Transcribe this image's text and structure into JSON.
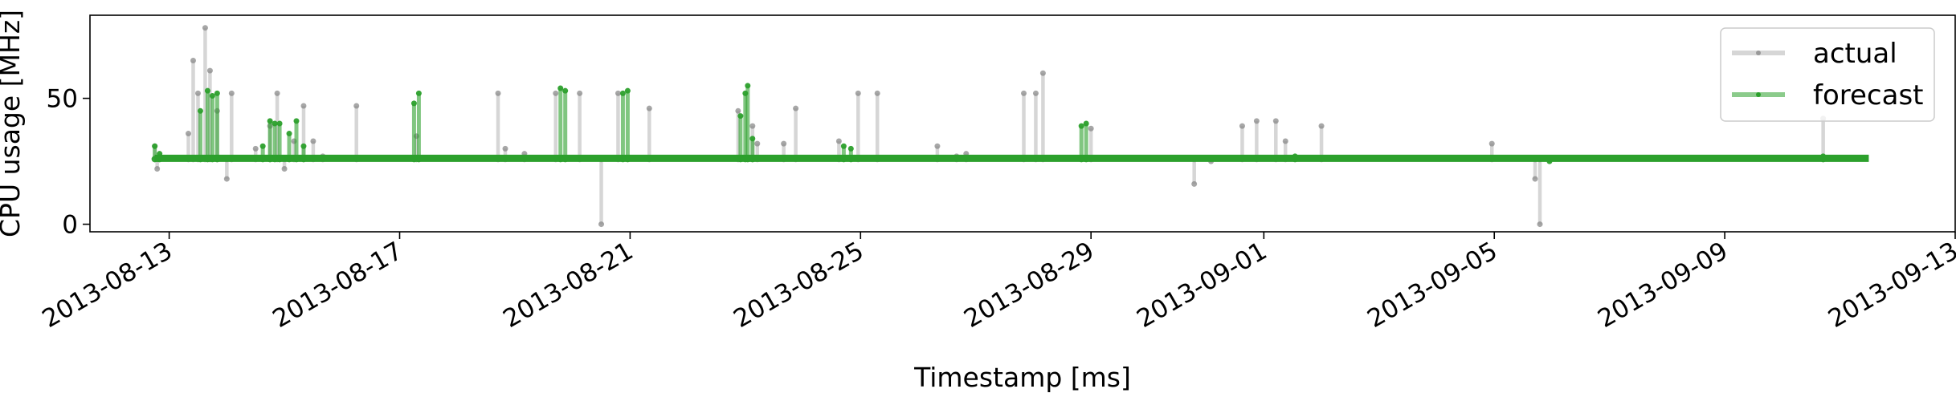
{
  "chart_data": {
    "type": "line",
    "xlabel": "Timestamp [ms]",
    "ylabel": "CPU usage [MHz]",
    "x_range": [
      "2013-08-11T15:00",
      "2013-09-13T00:00"
    ],
    "ylim": [
      -3,
      83
    ],
    "y_ticks": [
      0,
      50
    ],
    "x_ticks": [
      "2013-08-13",
      "2013-08-17",
      "2013-08-21",
      "2013-08-25",
      "2013-08-29",
      "2013-09-01",
      "2013-09-05",
      "2013-09-09",
      "2013-09-13"
    ],
    "legend": {
      "position": "top-right",
      "entries": [
        "actual",
        "forecast"
      ]
    },
    "grid": false,
    "baseline": {
      "value": 26.2,
      "start": "2013-08-12T18:00",
      "end": "2013-09-11T12:00"
    },
    "series": [
      {
        "name": "actual",
        "color": "#b5b5b5",
        "spikes": [
          [
            "2013-08-12T18:00",
            31
          ],
          [
            "2013-08-12T19:00",
            22
          ],
          [
            "2013-08-13T08:00",
            36
          ],
          [
            "2013-08-13T10:00",
            65
          ],
          [
            "2013-08-13T12:00",
            52
          ],
          [
            "2013-08-13T15:00",
            78
          ],
          [
            "2013-08-13T17:00",
            61
          ],
          [
            "2013-08-13T20:00",
            45
          ],
          [
            "2013-08-14T00:00",
            18
          ],
          [
            "2013-08-14T02:00",
            52
          ],
          [
            "2013-08-14T12:00",
            30
          ],
          [
            "2013-08-14T18:00",
            39
          ],
          [
            "2013-08-14T21:00",
            52
          ],
          [
            "2013-08-15T00:00",
            22
          ],
          [
            "2013-08-15T04:00",
            33
          ],
          [
            "2013-08-15T08:00",
            47
          ],
          [
            "2013-08-15T12:00",
            33
          ],
          [
            "2013-08-15T16:00",
            27
          ],
          [
            "2013-08-16T06:00",
            47
          ],
          [
            "2013-08-17T07:00",
            35
          ],
          [
            "2013-08-18T17:00",
            52
          ],
          [
            "2013-08-18T20:00",
            30
          ],
          [
            "2013-08-19T04:00",
            28
          ],
          [
            "2013-08-19T17:00",
            52
          ],
          [
            "2013-08-20T03:00",
            52
          ],
          [
            "2013-08-20T12:00",
            0
          ],
          [
            "2013-08-20T19:00",
            52
          ],
          [
            "2013-08-21T08:00",
            46
          ],
          [
            "2013-08-22T21:00",
            45
          ],
          [
            "2013-08-23T03:00",
            39
          ],
          [
            "2013-08-23T05:00",
            32
          ],
          [
            "2013-08-23T16:00",
            32
          ],
          [
            "2013-08-23T21:00",
            46
          ],
          [
            "2013-08-24T15:00",
            33
          ],
          [
            "2013-08-24T23:00",
            52
          ],
          [
            "2013-08-25T07:00",
            52
          ],
          [
            "2013-08-26T08:00",
            31
          ],
          [
            "2013-08-26T16:00",
            27
          ],
          [
            "2013-08-26T20:00",
            28
          ],
          [
            "2013-08-27T20:00",
            52
          ],
          [
            "2013-08-28T01:00",
            52
          ],
          [
            "2013-08-28T04:00",
            60
          ],
          [
            "2013-08-29T00:00",
            38
          ],
          [
            "2013-08-30T19:00",
            16
          ],
          [
            "2013-08-31T02:00",
            25
          ],
          [
            "2013-08-31T15:00",
            39
          ],
          [
            "2013-08-31T21:00",
            41
          ],
          [
            "2013-09-01T05:00",
            41
          ],
          [
            "2013-09-01T09:00",
            33
          ],
          [
            "2013-09-02T00:00",
            39
          ],
          [
            "2013-09-04T23:00",
            32
          ],
          [
            "2013-09-05T17:00",
            18
          ],
          [
            "2013-09-05T19:00",
            0
          ],
          [
            "2013-09-10T17:00",
            42
          ]
        ]
      },
      {
        "name": "forecast",
        "color": "#2ca02c",
        "spikes": [
          [
            "2013-08-12T18:00",
            31
          ],
          [
            "2013-08-12T20:00",
            28
          ],
          [
            "2013-08-13T13:00",
            45
          ],
          [
            "2013-08-13T16:00",
            53
          ],
          [
            "2013-08-13T18:00",
            51
          ],
          [
            "2013-08-13T20:00",
            52
          ],
          [
            "2013-08-14T15:00",
            31
          ],
          [
            "2013-08-14T18:00",
            41
          ],
          [
            "2013-08-14T20:00",
            40
          ],
          [
            "2013-08-14T22:00",
            40
          ],
          [
            "2013-08-15T02:00",
            36
          ],
          [
            "2013-08-15T05:00",
            41
          ],
          [
            "2013-08-15T08:00",
            31
          ],
          [
            "2013-08-17T06:00",
            48
          ],
          [
            "2013-08-17T08:00",
            52
          ],
          [
            "2013-08-19T19:00",
            54
          ],
          [
            "2013-08-19T21:00",
            53
          ],
          [
            "2013-08-20T21:00",
            52
          ],
          [
            "2013-08-20T23:00",
            53
          ],
          [
            "2013-08-22T22:00",
            43
          ],
          [
            "2013-08-23T00:00",
            52
          ],
          [
            "2013-08-23T01:00",
            55
          ],
          [
            "2013-08-23T03:00",
            34
          ],
          [
            "2013-08-24T17:00",
            31
          ],
          [
            "2013-08-24T20:00",
            30
          ],
          [
            "2013-08-28T20:00",
            39
          ],
          [
            "2013-08-28T22:00",
            40
          ],
          [
            "2013-09-01T13:00",
            27
          ],
          [
            "2013-09-05T23:00",
            25
          ],
          [
            "2013-09-10T17:00",
            27
          ]
        ]
      }
    ]
  }
}
